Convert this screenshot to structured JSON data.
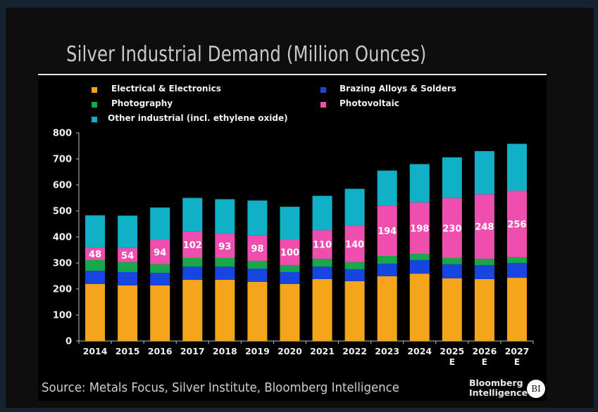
{
  "chart_data": {
    "type": "bar",
    "stacked": true,
    "title": "Silver Industrial Demand (Million Ounces)",
    "xlabel": "",
    "ylabel": "",
    "ylim": [
      0,
      800
    ],
    "yticks": [
      0,
      100,
      200,
      300,
      400,
      500,
      600,
      700,
      800
    ],
    "grid": false,
    "legend_position": "top",
    "categories": [
      "2014",
      "2015",
      "2016",
      "2017",
      "2018",
      "2019",
      "2020",
      "2021",
      "2022",
      "2023",
      "2024",
      "2025",
      "2026",
      "2027"
    ],
    "category_sublabels": [
      "",
      "",
      "",
      "",
      "",
      "",
      "",
      "",
      "",
      "",
      "",
      "E",
      "E",
      "E"
    ],
    "series": [
      {
        "name": "Electrical & Electronics",
        "color": "#f5a51a",
        "values": [
          219,
          214,
          214,
          235,
          235,
          227,
          219,
          238,
          230,
          249,
          259,
          241,
          238,
          243
        ]
      },
      {
        "name": "Brazing Alloys & Solders",
        "color": "#1645e0",
        "values": [
          51,
          51,
          48,
          51,
          51,
          51,
          46,
          48,
          46,
          48,
          52,
          54,
          54,
          57
        ]
      },
      {
        "name": "Photography",
        "color": "#18a84a",
        "values": [
          41,
          38,
          33,
          33,
          33,
          30,
          27,
          30,
          27,
          30,
          24,
          24,
          24,
          22
        ]
      },
      {
        "name": "Photovoltaic",
        "color": "#ee4fae",
        "values": [
          48,
          54,
          94,
          102,
          93,
          98,
          100,
          110,
          140,
          194,
          198,
          230,
          248,
          256
        ]
      },
      {
        "name": "Other industrial (incl. ethylene oxide)",
        "color": "#10b1c6",
        "values": [
          124,
          125,
          124,
          129,
          133,
          134,
          124,
          132,
          142,
          134,
          147,
          157,
          166,
          180
        ]
      }
    ],
    "data_labels": {
      "series": "Photovoltaic",
      "values": [
        "48",
        "54",
        "94",
        "102",
        "93",
        "98",
        "100",
        "110",
        "140",
        "194",
        "198",
        "230",
        "248",
        "256"
      ]
    }
  },
  "legend": [
    {
      "label": "Electrical & Electronics",
      "color": "#f5a51a"
    },
    {
      "label": "Brazing Alloys & Solders",
      "color": "#1645e0"
    },
    {
      "label": "Photography",
      "color": "#18a84a"
    },
    {
      "label": "Photovoltaic",
      "color": "#ee4fae"
    },
    {
      "label": "Other industrial (incl. ethylene oxide)",
      "color": "#10b1c6"
    }
  ],
  "source": "Source: Metals Focus, Silver Institute, Bloomberg Intelligence",
  "brand": {
    "line1": "Bloomberg",
    "line2": "Intelligence",
    "badge": "BI"
  }
}
